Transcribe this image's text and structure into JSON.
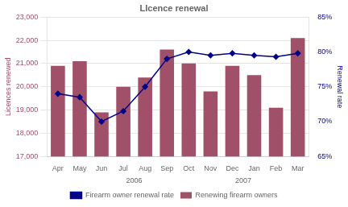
{
  "chart_data": {
    "type": "bar",
    "title": "LIcence renewal",
    "categories": [
      "Apr",
      "May",
      "Jun",
      "Jul",
      "Aug",
      "Sep",
      "Oct",
      "Nov",
      "Dec",
      "Jan",
      "Feb",
      "Mar"
    ],
    "series": [
      {
        "name": "Renewing firearm owners",
        "type": "bar",
        "color": "#a05068",
        "values": [
          20900,
          21100,
          18900,
          20000,
          20400,
          21600,
          21000,
          19800,
          20900,
          20500,
          19100,
          22100
        ]
      },
      {
        "name": "Firearm owner renewal rate",
        "type": "line",
        "color": "#00008b",
        "marker": "diamond",
        "axis": "y2",
        "values": [
          74.0,
          73.5,
          70.0,
          71.5,
          75.0,
          79.0,
          80.0,
          79.5,
          79.8,
          79.5,
          79.3,
          79.8
        ]
      }
    ],
    "ylabel": "Licences renewed",
    "y2label": "Renewal rate",
    "ylim": [
      17000,
      23000
    ],
    "yticks": [
      {
        "value": 17000,
        "label": "17,000"
      },
      {
        "value": 18000,
        "label": "18,000"
      },
      {
        "value": 19000,
        "label": "19,000"
      },
      {
        "value": 20000,
        "label": "20,000"
      },
      {
        "value": 21000,
        "label": "21,000"
      },
      {
        "value": 22000,
        "label": "22,000"
      },
      {
        "value": 23000,
        "label": "23,000"
      }
    ],
    "y2lim": [
      65,
      85
    ],
    "y2ticks": [
      {
        "value": 65,
        "label": "65%"
      },
      {
        "value": 70,
        "label": "70%"
      },
      {
        "value": 75,
        "label": "75%"
      },
      {
        "value": 80,
        "label": "80%"
      },
      {
        "value": 85,
        "label": "85%"
      }
    ],
    "grid": true,
    "legend": "bottom",
    "annotations": [
      {
        "text": "2006",
        "x": 3.5
      },
      {
        "text": "2007",
        "x": 8.5
      }
    ]
  }
}
